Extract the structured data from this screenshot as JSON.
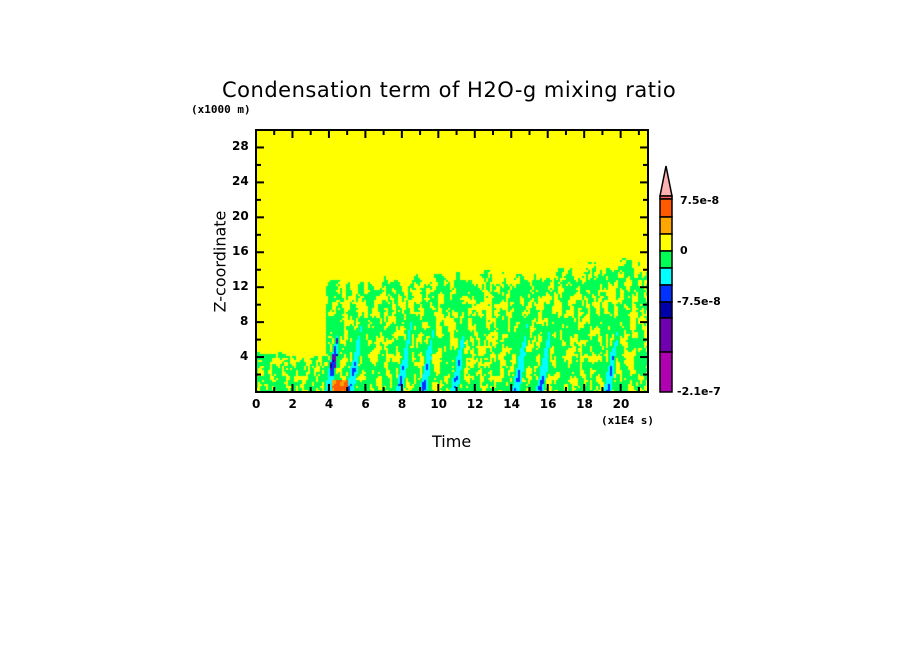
{
  "chart_data": {
    "type": "heatmap",
    "title": "Condensation term of H2O-g mixing ratio",
    "xlabel": "Time",
    "ylabel": "Z-coordinate",
    "x_unit": "(x1E4 s)",
    "y_unit": "(x1000 m)",
    "xlim": [
      0,
      21.5
    ],
    "ylim": [
      0,
      30
    ],
    "x_ticks": [
      "0",
      "2",
      "4",
      "6",
      "8",
      "10",
      "12",
      "14",
      "16",
      "18",
      "20"
    ],
    "y_ticks": [
      "4",
      "8",
      "12",
      "16",
      "20",
      "24",
      "28"
    ],
    "colorbar": {
      "labels": [
        "7.5e-8",
        "0",
        "-7.5e-8",
        "-2.1e-7"
      ],
      "label_values": [
        7.5e-08,
        0,
        -7.5e-08,
        -2.1e-07
      ],
      "colors": [
        "#ffb0b0",
        "#ff6060",
        "#ff5a00",
        "#ffa500",
        "#ffff00",
        "#00ff55",
        "#00ffff",
        "#0033ff",
        "#0000aa",
        "#7000b0",
        "#b000b0"
      ],
      "extend": "max"
    },
    "convective_cores_time": [
      4.3,
      5.5,
      8.2,
      9.5,
      11.2,
      14.6,
      15.9,
      19.6
    ]
  }
}
